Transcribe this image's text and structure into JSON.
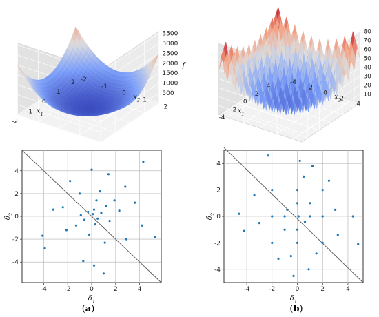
{
  "chart_data": [
    {
      "type": "surface3d",
      "panel": "a",
      "function": "paraboloid",
      "xlabel": "x1",
      "ylabel": "x2",
      "zlabel": "f",
      "xticks": [
        "-2",
        "-1",
        "0",
        "1",
        "2"
      ],
      "yticks": [
        "-2",
        "-1",
        "0",
        "1",
        "2"
      ],
      "zticks": [
        "500",
        "1000",
        "1500",
        "2000",
        "2500",
        "3000",
        "3500"
      ],
      "xlim": [
        -2,
        2
      ],
      "ylim": [
        -2,
        2
      ],
      "zlim": [
        0,
        3600
      ],
      "colormap": "coolwarm"
    },
    {
      "type": "surface3d",
      "panel": "b",
      "function": "rastrigin",
      "xlabel": "x1",
      "ylabel": "x2",
      "zlabel": "f",
      "xticks": [
        "-4",
        "-2",
        "0",
        "2",
        "4"
      ],
      "yticks": [
        "-4",
        "-2",
        "0",
        "2",
        "4"
      ],
      "zticks": [
        "10",
        "20",
        "30",
        "40",
        "50",
        "60",
        "70",
        "80"
      ],
      "xlim": [
        -5,
        5
      ],
      "ylim": [
        -5,
        5
      ],
      "zlim": [
        0,
        80
      ],
      "colormap": "coolwarm"
    },
    {
      "type": "scatter",
      "panel": "a",
      "xlabel": "δ1",
      "ylabel": "δ2",
      "xticks": [
        "-4",
        "-2",
        "0",
        "2",
        "4"
      ],
      "yticks": [
        "-4",
        "-2",
        "0",
        "2",
        "4"
      ],
      "xlim": [
        -5.8,
        5.8
      ],
      "ylim": [
        -5.8,
        5.8
      ],
      "grid": true,
      "diagonal": [
        [
          -5.8,
          5.8
        ],
        [
          5.8,
          -5.8
        ]
      ],
      "color": "#1f77b4",
      "points": [
        [
          0.1,
          0.2
        ],
        [
          -0.3,
          0.4
        ],
        [
          0.5,
          -0.2
        ],
        [
          -0.6,
          -0.3
        ],
        [
          0.2,
          0.6
        ],
        [
          0.8,
          0.3
        ],
        [
          -0.9,
          0.1
        ],
        [
          0.3,
          -0.7
        ],
        [
          1.2,
          0.9
        ],
        [
          -1.3,
          -0.8
        ],
        [
          0.4,
          1.4
        ],
        [
          1.5,
          -0.4
        ],
        [
          -0.2,
          -1.6
        ],
        [
          1.9,
          1.4
        ],
        [
          -2.1,
          -1.2
        ],
        [
          0.7,
          2.2
        ],
        [
          2.3,
          0.5
        ],
        [
          -1.0,
          2.0
        ],
        [
          -2.4,
          0.8
        ],
        [
          1.1,
          -2.3
        ],
        [
          2.8,
          2.6
        ],
        [
          3.6,
          1.2
        ],
        [
          -3.9,
          -2.8
        ],
        [
          4.2,
          -0.8
        ],
        [
          -4.1,
          -1.7
        ],
        [
          1.4,
          3.7
        ],
        [
          0.2,
          -4.3
        ],
        [
          -3.2,
          0.6
        ],
        [
          4.3,
          4.8
        ],
        [
          -1.8,
          3.1
        ],
        [
          5.3,
          -1.8
        ],
        [
          -0.7,
          -3.9
        ],
        [
          2.9,
          -2.0
        ],
        [
          0.0,
          4.1
        ],
        [
          1.0,
          -5.0
        ]
      ]
    },
    {
      "type": "scatter",
      "panel": "b",
      "xlabel": "δ1",
      "ylabel": "δ2",
      "xticks": [
        "-4",
        "-2",
        "0",
        "2",
        "4"
      ],
      "yticks": [
        "-4",
        "-2",
        "0",
        "2",
        "4"
      ],
      "xlim": [
        -5.8,
        5.2
      ],
      "ylim": [
        -5.0,
        5.0
      ],
      "grid": true,
      "diagonal": [
        [
          -5.8,
          5.2
        ],
        [
          5.2,
          -5.0
        ]
      ],
      "color": "#1f77b4",
      "points": [
        [
          0.1,
          0.0
        ],
        [
          0.6,
          -0.4
        ],
        [
          -0.8,
          0.5
        ],
        [
          1.0,
          1.0
        ],
        [
          -1.0,
          -1.0
        ],
        [
          0.0,
          1.0
        ],
        [
          1.0,
          0.0
        ],
        [
          -1.0,
          0.0
        ],
        [
          0.0,
          -1.0
        ],
        [
          2.0,
          0.0
        ],
        [
          -2.0,
          0.0
        ],
        [
          0.0,
          2.0
        ],
        [
          0.0,
          -2.0
        ],
        [
          2.0,
          2.0
        ],
        [
          -2.0,
          -2.0
        ],
        [
          -2.0,
          2.0
        ],
        [
          2.0,
          -2.0
        ],
        [
          3.0,
          0.5
        ],
        [
          -3.0,
          -0.5
        ],
        [
          0.5,
          3.0
        ],
        [
          -0.5,
          -3.0
        ],
        [
          0.2,
          4.2
        ],
        [
          -0.3,
          -4.5
        ],
        [
          4.4,
          0.0
        ],
        [
          -4.6,
          0.2
        ],
        [
          1.2,
          3.8
        ],
        [
          -1.5,
          -3.2
        ],
        [
          3.2,
          -1.4
        ],
        [
          -3.4,
          1.6
        ],
        [
          4.8,
          -2.1
        ],
        [
          -2.3,
          4.6
        ],
        [
          0.9,
          -4.0
        ],
        [
          2.5,
          2.7
        ],
        [
          -4.2,
          -1.1
        ],
        [
          1.5,
          -2.8
        ]
      ]
    }
  ],
  "captions": [
    "(a)",
    "(b)"
  ]
}
